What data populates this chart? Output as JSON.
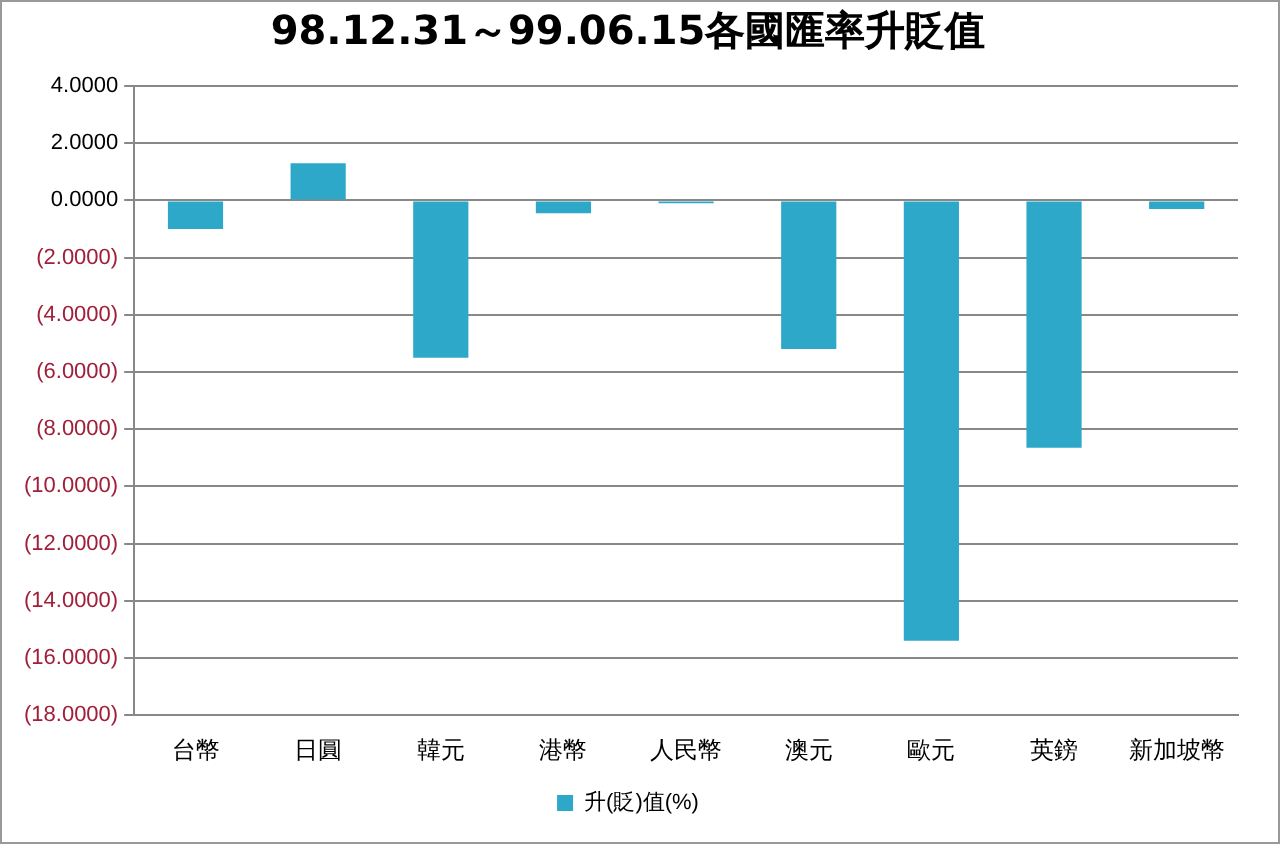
{
  "chart_data": {
    "type": "bar",
    "title": "98.12.31～99.06.15各國匯率升貶值",
    "categories": [
      "台幣",
      "日圓",
      "韓元",
      "港幣",
      "人民幣",
      "澳元",
      "歐元",
      "英鎊",
      "新加坡幣"
    ],
    "series": [
      {
        "name": "升(貶)值(%)",
        "color": "#2ea8c8",
        "values": [
          -1.0,
          1.3,
          -5.5,
          -0.45,
          -0.1,
          -5.2,
          -15.4,
          -8.65,
          -0.3
        ]
      }
    ],
    "ylim": [
      -18,
      4
    ],
    "yticks": [
      {
        "value": -18,
        "label": "(18.0000)"
      },
      {
        "value": -16,
        "label": "(16.0000)"
      },
      {
        "value": -14,
        "label": "(14.0000)"
      },
      {
        "value": -12,
        "label": "(12.0000)"
      },
      {
        "value": -10,
        "label": "(10.0000)"
      },
      {
        "value": -8,
        "label": "(8.0000)"
      },
      {
        "value": -6,
        "label": "(6.0000)"
      },
      {
        "value": -4,
        "label": "(4.0000)"
      },
      {
        "value": -2,
        "label": "(2.0000)"
      },
      {
        "value": 0,
        "label": "0.0000"
      },
      {
        "value": 2,
        "label": "2.0000"
      },
      {
        "value": 4,
        "label": "4.0000"
      }
    ],
    "grid": "y",
    "legend": "bottom"
  }
}
